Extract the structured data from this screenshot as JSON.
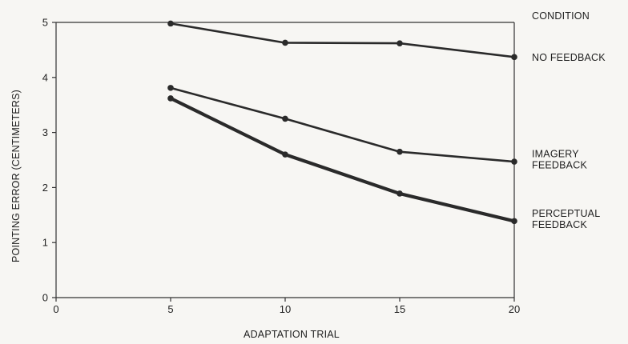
{
  "chart_data": {
    "type": "line",
    "title": "",
    "xlabel": "ADAPTATION TRIAL",
    "ylabel": "POINTING ERROR (CENTIMETERS)",
    "xlim": [
      0,
      20
    ],
    "ylim": [
      0,
      5
    ],
    "xticks": [
      0,
      5,
      10,
      15,
      20
    ],
    "yticks": [
      0,
      1,
      2,
      3,
      4,
      5
    ],
    "grid": false,
    "legend_title": "CONDITION",
    "legend_placement": "right",
    "series": [
      {
        "name": "NO FEEDBACK",
        "label_lines": [
          "NO FEEDBACK"
        ],
        "x": [
          5,
          10,
          15,
          20
        ],
        "values": [
          4.98,
          4.63,
          4.62,
          4.37
        ],
        "stroke_width": 2.6
      },
      {
        "name": "IMAGERY FEEDBACK",
        "label_lines": [
          "IMAGERY",
          "FEEDBACK"
        ],
        "x": [
          5,
          10,
          15,
          20
        ],
        "values": [
          3.81,
          3.25,
          2.65,
          2.47
        ],
        "stroke_width": 2.6
      },
      {
        "name": "PERCEPTUAL FEEDBACK",
        "label_lines": [
          "PERCEPTUAL",
          "FEEDBACK"
        ],
        "x": [
          5,
          10,
          15,
          20
        ],
        "values": [
          3.62,
          2.6,
          1.89,
          1.39
        ],
        "stroke_width": 4.2
      }
    ]
  }
}
